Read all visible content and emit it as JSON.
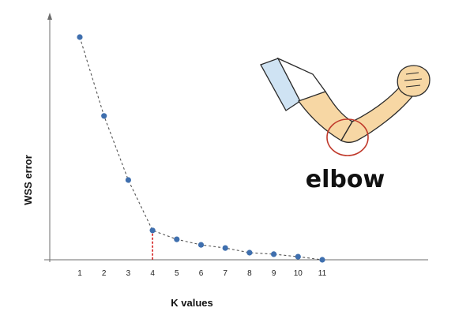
{
  "chart_data": {
    "type": "line",
    "title": "",
    "xlabel": "K values",
    "ylabel": "WSS error",
    "x": [
      1,
      2,
      3,
      4,
      5,
      6,
      7,
      8,
      9,
      10,
      11
    ],
    "tick_labels": [
      "1",
      "2",
      "3",
      "4",
      "5",
      "6",
      "7",
      "8",
      "9",
      "10",
      "11"
    ],
    "series": [
      {
        "values": [
          100,
          64.6,
          35.8,
          13.2,
          9.2,
          6.7,
          5.3,
          3.2,
          2.5,
          1.4,
          0
        ]
      }
    ],
    "ylim": [
      0,
      105
    ],
    "grid": false,
    "show_y_ticks": false,
    "line_style": "dashed",
    "marker_color": "#3f6fae",
    "elbow_k": 4,
    "elbow_marker_color": "#d41f1f"
  },
  "illustration": {
    "label": "elbow",
    "icon": "bent-arm-elbow-icon",
    "circle_color": "#c0392b"
  }
}
